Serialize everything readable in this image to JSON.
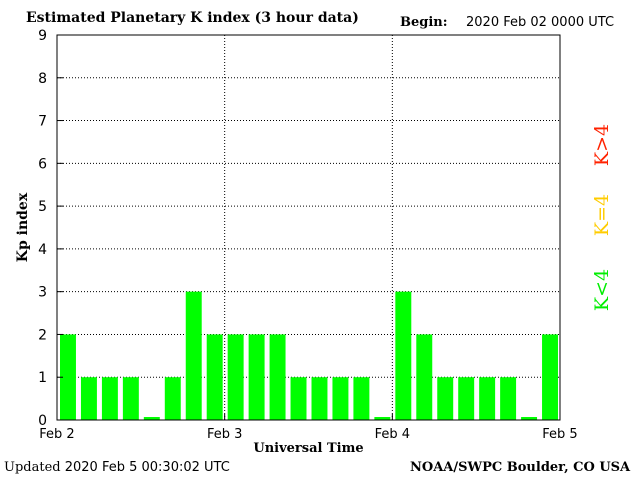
{
  "header": {
    "title": "Estimated Planetary K index (3 hour data)",
    "begin_label": "Begin:",
    "begin_value": "2020 Feb 02 0000 UTC"
  },
  "footer": {
    "updated_label": "Updated",
    "updated_value": "2020 Feb  5 00:30:02 UTC",
    "credit": "NOAA/SWPC Boulder, CO USA"
  },
  "chart_data": {
    "type": "bar",
    "title": "Estimated Planetary K index (3 hour data)",
    "xlabel": "Universal Time",
    "ylabel": "Kp index",
    "ylim": [
      0,
      9
    ],
    "yticks": [
      0,
      1,
      2,
      3,
      4,
      5,
      6,
      7,
      8,
      9
    ],
    "x_tick_labels": [
      "Feb 2",
      "Feb 3",
      "Feb 4",
      "Feb 5"
    ],
    "grid": true,
    "bar_color": "#00ff00",
    "values": [
      2,
      1,
      1,
      1,
      0.07,
      1,
      3,
      2,
      2,
      2,
      2,
      1,
      1,
      1,
      1,
      0.07,
      3,
      2,
      1,
      1,
      1,
      1,
      0.07,
      2
    ],
    "legend": {
      "placement": "right",
      "items": [
        {
          "label": "K<4",
          "color": "#00ee00"
        },
        {
          "label": "K=4",
          "color": "#ffcc00"
        },
        {
          "label": "K>4",
          "color": "#ff2200"
        }
      ]
    }
  }
}
